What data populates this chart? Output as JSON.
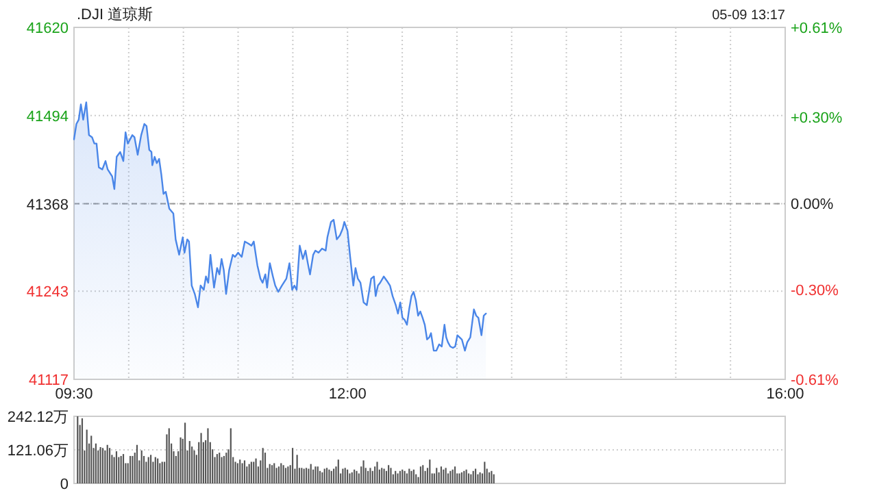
{
  "chart_data": [
    {
      "type": "area",
      "title": ".DJI 道琼斯",
      "subtitle": "05-09 13:17",
      "x": [
        9.5,
        9.522,
        9.543,
        9.563,
        9.584,
        9.612,
        9.637,
        9.665,
        9.686,
        9.706,
        9.727,
        9.759,
        9.788,
        9.808,
        9.849,
        9.869,
        9.89,
        9.922,
        9.951,
        9.971,
        9.992,
        10.033,
        10.053,
        10.082,
        10.114,
        10.143,
        10.163,
        10.188,
        10.208,
        10.216,
        10.237,
        10.257,
        10.278,
        10.298,
        10.318,
        10.339,
        10.371,
        10.408,
        10.429,
        10.461,
        10.494,
        10.51,
        10.535,
        10.551,
        10.576,
        10.604,
        10.633,
        10.657,
        10.686,
        10.706,
        10.727,
        10.747,
        10.78,
        10.808,
        10.829,
        10.849,
        10.869,
        10.89,
        10.918,
        10.951,
        10.971,
        11.0,
        11.033,
        11.061,
        11.094,
        11.122,
        11.143,
        11.176,
        11.204,
        11.224,
        11.249,
        11.265,
        11.29,
        11.318,
        11.339,
        11.367,
        11.4,
        11.441,
        11.469,
        11.494,
        11.514,
        11.535,
        11.563,
        11.592,
        11.616,
        11.637,
        11.657,
        11.686,
        11.706,
        11.735,
        11.767,
        11.8,
        11.816,
        11.849,
        11.873,
        11.902,
        11.931,
        11.955,
        11.971,
        12.0,
        12.024,
        12.053,
        12.073,
        12.094,
        12.118,
        12.147,
        12.176,
        12.196,
        12.216,
        12.241,
        12.257,
        12.278,
        12.298,
        12.331,
        12.359,
        12.388,
        12.412,
        12.441,
        12.461,
        12.482,
        12.502,
        12.522,
        12.543,
        12.563,
        12.584,
        12.604,
        12.624,
        12.645,
        12.665,
        12.686,
        12.706,
        12.727,
        12.747,
        12.763,
        12.788,
        12.812,
        12.837,
        12.861,
        12.886,
        12.902,
        12.918,
        12.939,
        12.963,
        12.984,
        13.004,
        13.024,
        13.045,
        13.073,
        13.094,
        13.122,
        13.155,
        13.176,
        13.196,
        13.224,
        13.245,
        13.265
      ],
      "series": [
        {
          "color": "#4a86e8",
          "values": [
            41460,
            41482,
            41488,
            41510,
            41488,
            41513,
            41466,
            41463,
            41454,
            41454,
            41420,
            41417,
            41429,
            41417,
            41407,
            41389,
            41435,
            41442,
            41429,
            41470,
            41454,
            41466,
            41463,
            41438,
            41466,
            41482,
            41479,
            41445,
            41442,
            41423,
            41435,
            41426,
            41432,
            41410,
            41382,
            41385,
            41361,
            41354,
            41317,
            41295,
            41320,
            41298,
            41317,
            41314,
            41251,
            41239,
            41220,
            41251,
            41245,
            41264,
            41255,
            41295,
            41248,
            41276,
            41267,
            41289,
            41273,
            41239,
            41273,
            41295,
            41292,
            41298,
            41292,
            41314,
            41311,
            41308,
            41314,
            41280,
            41261,
            41255,
            41267,
            41248,
            41283,
            41264,
            41251,
            41242,
            41251,
            41261,
            41283,
            41245,
            41251,
            41245,
            41308,
            41289,
            41301,
            41283,
            41267,
            41295,
            41301,
            41298,
            41304,
            41301,
            41320,
            41342,
            41345,
            41317,
            41323,
            41332,
            41342,
            41329,
            41292,
            41251,
            41276,
            41261,
            41255,
            41227,
            41223,
            41242,
            41261,
            41264,
            41236,
            41251,
            41255,
            41264,
            41258,
            41251,
            41236,
            41223,
            41211,
            41227,
            41205,
            41202,
            41195,
            41217,
            41236,
            41242,
            41230,
            41208,
            41214,
            41205,
            41195,
            41174,
            41177,
            41183,
            41158,
            41158,
            41167,
            41164,
            41195,
            41177,
            41170,
            41164,
            41162,
            41164,
            41180,
            41177,
            41174,
            41158,
            41170,
            41177,
            41217,
            41208,
            41205,
            41180,
            41208,
            41211
          ]
        }
      ],
      "xlim": [
        9.5,
        16
      ],
      "xticks": [
        {
          "value": 9.5,
          "label": "09:30"
        },
        {
          "value": 10,
          "label": null
        },
        {
          "value": 10.5,
          "label": null
        },
        {
          "value": 11,
          "label": null
        },
        {
          "value": 11.5,
          "label": null
        },
        {
          "value": 12,
          "label": "12:00"
        },
        {
          "value": 12.5,
          "label": null
        },
        {
          "value": 13,
          "label": null
        },
        {
          "value": 13.5,
          "label": null
        },
        {
          "value": 14,
          "label": null
        },
        {
          "value": 14.5,
          "label": null
        },
        {
          "value": 15,
          "label": null
        },
        {
          "value": 15.5,
          "label": null
        },
        {
          "value": 16,
          "label": "16:00"
        }
      ],
      "ylim": [
        41117,
        41620
      ],
      "yticks": [
        41117,
        41243,
        41368,
        41494,
        41620
      ],
      "y2lim": [
        -0.61,
        0.61
      ],
      "y2ticks": [
        {
          "value": -0.61,
          "label": "-0.61%"
        },
        {
          "value": -0.3,
          "label": "-0.30%"
        },
        {
          "value": 0,
          "label": "0.00%"
        },
        {
          "value": 0.3,
          "label": "+0.30%"
        },
        {
          "value": 0.61,
          "label": "+0.61%"
        }
      ],
      "ref_lines": [
        {
          "axis": "y",
          "value": 41368,
          "color": "#999999",
          "line_style": "dashed"
        }
      ],
      "grid": true
    },
    {
      "type": "bar",
      "x": [
        9.533,
        9.554,
        9.575,
        9.596,
        9.617,
        9.638,
        9.658,
        9.679,
        9.7,
        9.721,
        9.742,
        9.763,
        9.784,
        9.805,
        9.826,
        9.847,
        9.867,
        9.888,
        9.909,
        9.93,
        9.951,
        9.972,
        9.993,
        10.014,
        10.035,
        10.056,
        10.076,
        10.097,
        10.118,
        10.139,
        10.16,
        10.181,
        10.202,
        10.223,
        10.244,
        10.265,
        10.285,
        10.306,
        10.327,
        10.348,
        10.369,
        10.39,
        10.411,
        10.432,
        10.453,
        10.474,
        10.494,
        10.515,
        10.536,
        10.557,
        10.578,
        10.599,
        10.62,
        10.641,
        10.662,
        10.683,
        10.703,
        10.724,
        10.745,
        10.766,
        10.787,
        10.808,
        10.829,
        10.85,
        10.871,
        10.892,
        10.912,
        10.933,
        10.954,
        10.975,
        10.996,
        11.017,
        11.038,
        11.059,
        11.08,
        11.101,
        11.121,
        11.142,
        11.163,
        11.184,
        11.205,
        11.226,
        11.247,
        11.268,
        11.289,
        11.31,
        11.33,
        11.351,
        11.372,
        11.393,
        11.414,
        11.435,
        11.456,
        11.477,
        11.498,
        11.519,
        11.539,
        11.56,
        11.581,
        11.602,
        11.623,
        11.644,
        11.665,
        11.686,
        11.707,
        11.728,
        11.748,
        11.769,
        11.79,
        11.811,
        11.832,
        11.853,
        11.874,
        11.895,
        11.916,
        11.937,
        11.957,
        11.978,
        11.999,
        12.02,
        12.041,
        12.062,
        12.083,
        12.104,
        12.125,
        12.146,
        12.166,
        12.187,
        12.208,
        12.229,
        12.25,
        12.271,
        12.292,
        12.313,
        12.334,
        12.355,
        12.375,
        12.396,
        12.417,
        12.438,
        12.459,
        12.48,
        12.501,
        12.522,
        12.543,
        12.564,
        12.584,
        12.605,
        12.626,
        12.647,
        12.668,
        12.689,
        12.71,
        12.731,
        12.752,
        12.773,
        12.793,
        12.814,
        12.835,
        12.856,
        12.877,
        12.898,
        12.919,
        12.94,
        12.961,
        12.982,
        13.002,
        13.023,
        13.044,
        13.065,
        13.086,
        13.107,
        13.128,
        13.149,
        13.17,
        13.191,
        13.211,
        13.232,
        13.253,
        13.274,
        13.295,
        13.316,
        13.337
      ],
      "series": [
        {
          "color": "#555555",
          "values": [
            242,
            211,
            235,
            119,
            194,
            144,
            172,
            128,
            144,
            119,
            131,
            128,
            119,
            139,
            128,
            103,
            95,
            116,
            95,
            99,
            106,
            73,
            73,
            99,
            99,
            111,
            139,
            83,
            119,
            99,
            78,
            95,
            103,
            78,
            95,
            90,
            73,
            78,
            78,
            177,
            199,
            144,
            116,
            99,
            116,
            166,
            161,
            219,
            119,
            153,
            133,
            119,
            103,
            149,
            182,
            149,
            156,
            199,
            149,
            123,
            95,
            106,
            111,
            95,
            99,
            111,
            123,
            199,
            95,
            78,
            73,
            86,
            73,
            83,
            61,
            70,
            78,
            78,
            90,
            61,
            83,
            128,
            111,
            56,
            70,
            66,
            73,
            56,
            61,
            73,
            66,
            56,
            61,
            66,
            128,
            53,
            103,
            56,
            56,
            53,
            56,
            53,
            70,
            50,
            61,
            61,
            45,
            40,
            53,
            56,
            50,
            45,
            53,
            61,
            86,
            36,
            53,
            56,
            50,
            36,
            40,
            50,
            45,
            36,
            61,
            83,
            56,
            45,
            56,
            45,
            61,
            78,
            50,
            56,
            53,
            45,
            66,
            56,
            33,
            45,
            36,
            45,
            50,
            45,
            36,
            53,
            45,
            50,
            33,
            23,
            61,
            66,
            45,
            56,
            86,
            36,
            36,
            56,
            40,
            61,
            50,
            56,
            36,
            45,
            50,
            61,
            36,
            36,
            40,
            45,
            50,
            36,
            33,
            45,
            53,
            33,
            40,
            36,
            78,
            53,
            40,
            45,
            33
          ]
        }
      ],
      "xlim": [
        9.5,
        16
      ],
      "ylim": [
        0,
        242.12
      ],
      "yticks": [
        {
          "value": 0,
          "label": "0"
        },
        {
          "value": 121.06,
          "label": "121.06万"
        },
        {
          "value": 242.12,
          "label": "242.12万"
        }
      ],
      "grid": "y",
      "tick_labels": "y"
    }
  ]
}
